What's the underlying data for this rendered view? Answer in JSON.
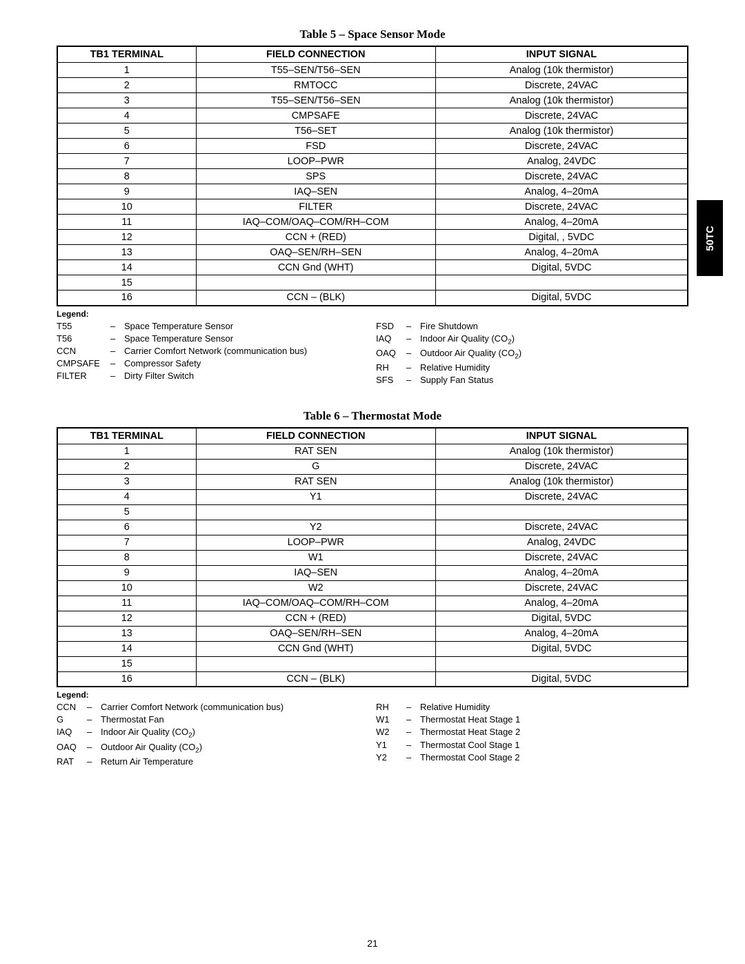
{
  "sideTab": "50TC",
  "pageNumber": "21",
  "table5": {
    "title": "Table 5 – Space Sensor Mode",
    "headers": [
      "TB1 TERMINAL",
      "FIELD CONNECTION",
      "INPUT SIGNAL"
    ],
    "rows": [
      [
        "1",
        "T55–SEN/T56–SEN",
        "Analog (10k thermistor)"
      ],
      [
        "2",
        "RMTOCC",
        "Discrete, 24VAC"
      ],
      [
        "3",
        "T55–SEN/T56–SEN",
        "Analog (10k thermistor)"
      ],
      [
        "4",
        "CMPSAFE",
        "Discrete, 24VAC"
      ],
      [
        "5",
        "T56–SET",
        "Analog (10k thermistor)"
      ],
      [
        "6",
        "FSD",
        "Discrete, 24VAC"
      ],
      [
        "7",
        "LOOP–PWR",
        "Analog, 24VDC"
      ],
      [
        "8",
        "SPS",
        "Discrete, 24VAC"
      ],
      [
        "9",
        "IAQ–SEN",
        "Analog, 4–20mA"
      ],
      [
        "10",
        "FILTER",
        "Discrete, 24VAC"
      ],
      [
        "11",
        "IAQ–COM/OAQ–COM/RH–COM",
        "Analog, 4–20mA"
      ],
      [
        "12",
        "CCN + (RED)",
        "Digital, , 5VDC"
      ],
      [
        "13",
        "OAQ–SEN/RH–SEN",
        "Analog, 4–20mA"
      ],
      [
        "14",
        "CCN Gnd (WHT)",
        "Digital, 5VDC"
      ],
      [
        "15",
        "",
        ""
      ],
      [
        "16",
        "CCN – (BLK)",
        "Digital, 5VDC"
      ]
    ],
    "legendTitle": "Legend:",
    "legendLeft": [
      {
        "abbr": "T55",
        "def": "Space Temperature Sensor"
      },
      {
        "abbr": "T56",
        "def": "Space Temperature Sensor"
      },
      {
        "abbr": "CCN",
        "def": "Carrier Comfort Network (communication bus)"
      },
      {
        "abbr": "CMPSAFE",
        "def": "Compressor Safety"
      },
      {
        "abbr": "FILTER",
        "def": "Dirty Filter Switch"
      }
    ],
    "legendRight": [
      {
        "abbr": "FSD",
        "def": "Fire Shutdown",
        "sub": ""
      },
      {
        "abbr": "IAQ",
        "def": "Indoor Air Quality (CO",
        "sub": "2",
        "suffix": ")"
      },
      {
        "abbr": "OAQ",
        "def": "Outdoor Air Quality (CO",
        "sub": "2",
        "suffix": ")"
      },
      {
        "abbr": "RH",
        "def": "Relative Humidity",
        "sub": ""
      },
      {
        "abbr": "SFS",
        "def": "Supply Fan Status",
        "sub": ""
      }
    ]
  },
  "table6": {
    "title": "Table 6 – Thermostat Mode",
    "headers": [
      "TB1 TERMINAL",
      "FIELD CONNECTION",
      "INPUT SIGNAL"
    ],
    "rows": [
      [
        "1",
        "RAT SEN",
        "Analog (10k thermistor)"
      ],
      [
        "2",
        "G",
        "Discrete, 24VAC"
      ],
      [
        "3",
        "RAT SEN",
        "Analog (10k thermistor)"
      ],
      [
        "4",
        "Y1",
        "Discrete, 24VAC"
      ],
      [
        "5",
        "",
        ""
      ],
      [
        "6",
        "Y2",
        "Discrete, 24VAC"
      ],
      [
        "7",
        "LOOP–PWR",
        "Analog, 24VDC"
      ],
      [
        "8",
        "W1",
        "Discrete, 24VAC"
      ],
      [
        "9",
        "IAQ–SEN",
        "Analog, 4–20mA"
      ],
      [
        "10",
        "W2",
        "Discrete, 24VAC"
      ],
      [
        "11",
        "IAQ–COM/OAQ–COM/RH–COM",
        "Analog, 4–20mA"
      ],
      [
        "12",
        "CCN + (RED)",
        "Digital, 5VDC"
      ],
      [
        "13",
        "OAQ–SEN/RH–SEN",
        "Analog, 4–20mA"
      ],
      [
        "14",
        "CCN Gnd (WHT)",
        "Digital, 5VDC"
      ],
      [
        "15",
        "",
        ""
      ],
      [
        "16",
        "CCN – (BLK)",
        "Digital, 5VDC"
      ]
    ],
    "legendTitle": "Legend:",
    "legendLeft": [
      {
        "abbr": "CCN",
        "def": "Carrier Comfort Network (communication bus)",
        "sub": ""
      },
      {
        "abbr": "G",
        "def": "Thermostat Fan",
        "sub": ""
      },
      {
        "abbr": "IAQ",
        "def": "Indoor Air Quality (CO",
        "sub": "2",
        "suffix": ")"
      },
      {
        "abbr": "OAQ",
        "def": "Outdoor Air Quality (CO",
        "sub": "2",
        "suffix": ")"
      },
      {
        "abbr": "RAT",
        "def": "Return Air Temperature",
        "sub": ""
      }
    ],
    "legendRight": [
      {
        "abbr": "RH",
        "def": "Relative Humidity"
      },
      {
        "abbr": "W1",
        "def": "Thermostat Heat Stage 1"
      },
      {
        "abbr": "W2",
        "def": "Thermostat Heat Stage 2"
      },
      {
        "abbr": "Y1",
        "def": "Thermostat Cool Stage 1"
      },
      {
        "abbr": "Y2",
        "def": "Thermostat Cool Stage 2"
      }
    ]
  }
}
